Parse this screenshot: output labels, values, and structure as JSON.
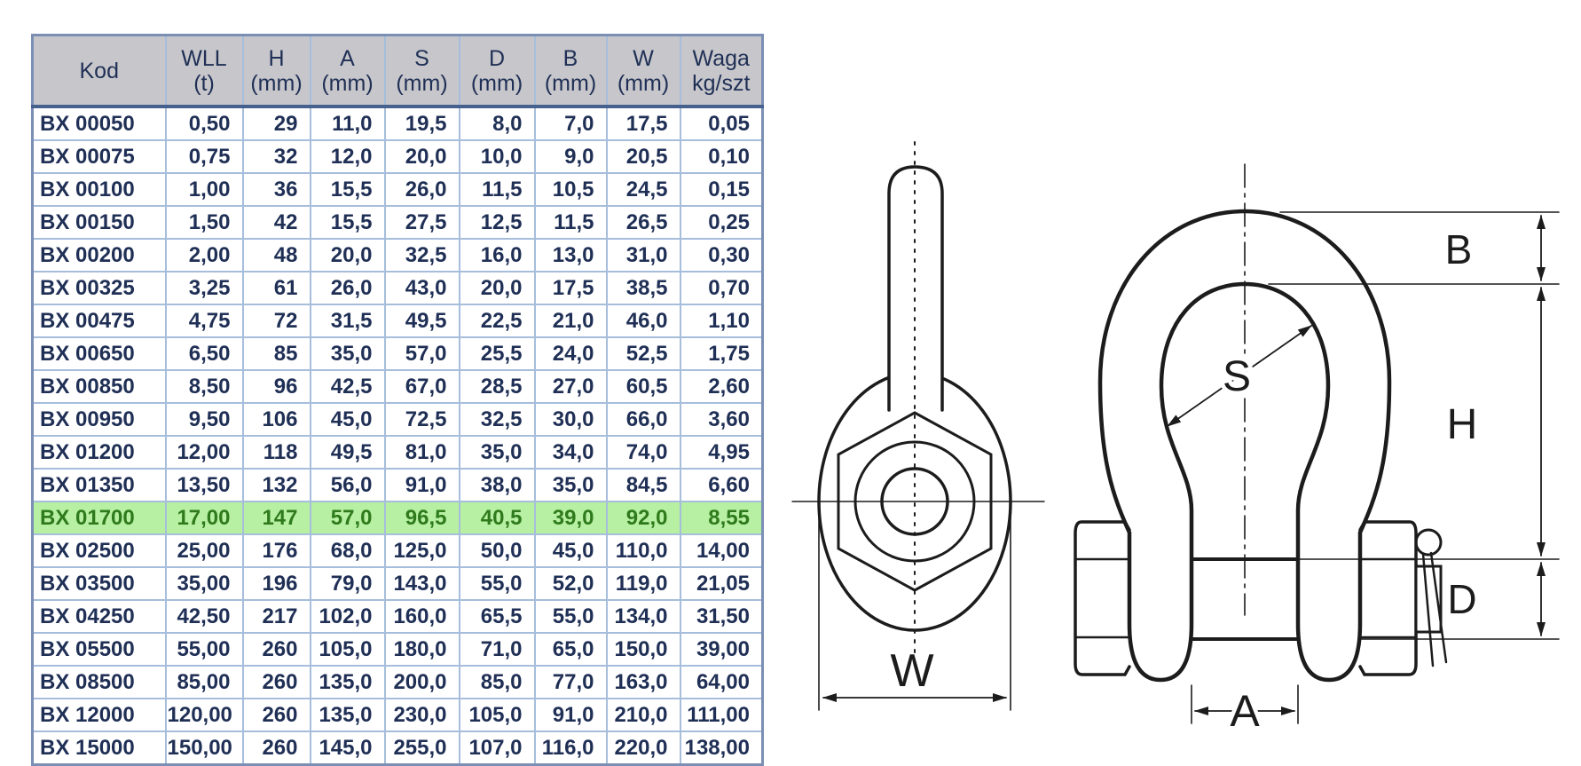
{
  "table": {
    "columns": [
      {
        "label": "Kod",
        "sub": ""
      },
      {
        "label": "WLL",
        "sub": "(t)"
      },
      {
        "label": "H",
        "sub": "(mm)"
      },
      {
        "label": "A",
        "sub": "(mm)"
      },
      {
        "label": "S",
        "sub": "(mm)"
      },
      {
        "label": "D",
        "sub": "(mm)"
      },
      {
        "label": "B",
        "sub": "(mm)"
      },
      {
        "label": "W",
        "sub": "(mm)"
      },
      {
        "label": "Waga",
        "sub": "kg/szt"
      }
    ],
    "rows": [
      [
        "BX 00050",
        "0,50",
        "29",
        "11,0",
        "19,5",
        "8,0",
        "7,0",
        "17,5",
        "0,05"
      ],
      [
        "BX 00075",
        "0,75",
        "32",
        "12,0",
        "20,0",
        "10,0",
        "9,0",
        "20,5",
        "0,10"
      ],
      [
        "BX 00100",
        "1,00",
        "36",
        "15,5",
        "26,0",
        "11,5",
        "10,5",
        "24,5",
        "0,15"
      ],
      [
        "BX 00150",
        "1,50",
        "42",
        "15,5",
        "27,5",
        "12,5",
        "11,5",
        "26,5",
        "0,25"
      ],
      [
        "BX 00200",
        "2,00",
        "48",
        "20,0",
        "32,5",
        "16,0",
        "13,0",
        "31,0",
        "0,30"
      ],
      [
        "BX 00325",
        "3,25",
        "61",
        "26,0",
        "43,0",
        "20,0",
        "17,5",
        "38,5",
        "0,70"
      ],
      [
        "BX 00475",
        "4,75",
        "72",
        "31,5",
        "49,5",
        "22,5",
        "21,0",
        "46,0",
        "1,10"
      ],
      [
        "BX 00650",
        "6,50",
        "85",
        "35,0",
        "57,0",
        "25,5",
        "24,0",
        "52,5",
        "1,75"
      ],
      [
        "BX 00850",
        "8,50",
        "96",
        "42,5",
        "67,0",
        "28,5",
        "27,0",
        "60,5",
        "2,60"
      ],
      [
        "BX 00950",
        "9,50",
        "106",
        "45,0",
        "72,5",
        "32,5",
        "30,0",
        "66,0",
        "3,60"
      ],
      [
        "BX 01200",
        "12,00",
        "118",
        "49,5",
        "81,0",
        "35,0",
        "34,0",
        "74,0",
        "4,95"
      ],
      [
        "BX 01350",
        "13,50",
        "132",
        "56,0",
        "91,0",
        "38,0",
        "35,0",
        "84,5",
        "6,60"
      ],
      [
        "BX 01700",
        "17,00",
        "147",
        "57,0",
        "96,5",
        "40,5",
        "39,0",
        "92,0",
        "8,55"
      ],
      [
        "BX 02500",
        "25,00",
        "176",
        "68,0",
        "125,0",
        "50,0",
        "45,0",
        "110,0",
        "14,00"
      ],
      [
        "BX 03500",
        "35,00",
        "196",
        "79,0",
        "143,0",
        "55,0",
        "52,0",
        "119,0",
        "21,05"
      ],
      [
        "BX 04250",
        "42,50",
        "217",
        "102,0",
        "160,0",
        "65,5",
        "55,0",
        "134,0",
        "31,50"
      ],
      [
        "BX 05500",
        "55,00",
        "260",
        "105,0",
        "180,0",
        "71,0",
        "65,0",
        "150,0",
        "39,00"
      ],
      [
        "BX 08500",
        "85,00",
        "260",
        "135,0",
        "200,0",
        "85,0",
        "77,0",
        "163,0",
        "64,00"
      ],
      [
        "BX 12000",
        "120,00",
        "260",
        "135,0",
        "230,0",
        "105,0",
        "91,0",
        "210,0",
        "111,00"
      ],
      [
        "BX 15000",
        "150,00",
        "260",
        "145,0",
        "255,0",
        "107,0",
        "116,0",
        "220,0",
        "138,00"
      ]
    ],
    "highlight_index": 12,
    "highlighted_code": "BX 01700"
  },
  "diagrams": {
    "pin_view": {
      "dim_w": "W"
    },
    "front_view": {
      "dim_b": "B",
      "dim_s": "S",
      "dim_h": "H",
      "dim_d": "D",
      "dim_a": "A"
    }
  },
  "colors": {
    "header_bg": "#c7c7cb",
    "table_text": "#1f2f55",
    "grid_line": "#a6bedb",
    "outer_border": "#7b8fb5",
    "header_divider": "#47618e",
    "highlight_bg": "#b7f0a2",
    "highlight_text": "#2f7a1c",
    "drawing_line": "#1c1c1c"
  }
}
